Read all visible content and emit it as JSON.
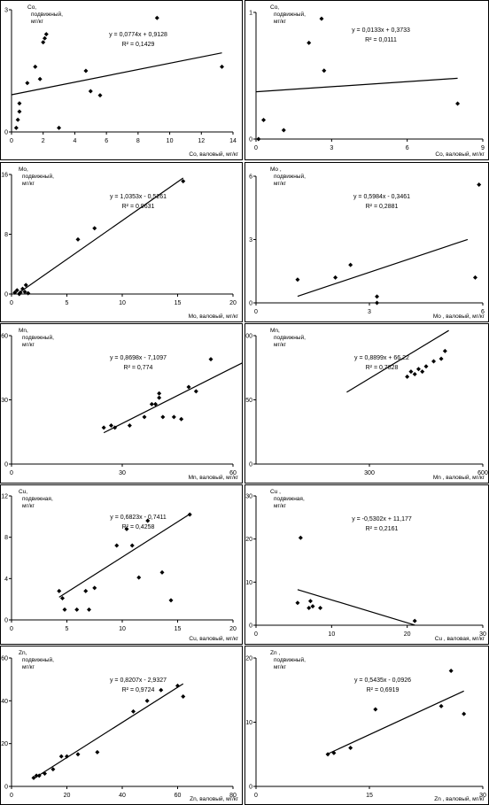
{
  "chart_data": [
    {
      "type": "scatter",
      "ylabel": "Co, подвижный, мг/кг",
      "xlabel": "Co, валовый, мг/кг",
      "equation": "y = 0,0774x + 0,9128",
      "r2": "R² = 0,1429",
      "xlim": [
        0,
        14
      ],
      "ylim": [
        0,
        3
      ],
      "xticks": [
        0,
        2,
        4,
        6,
        8,
        10,
        12,
        14
      ],
      "yticks": [
        0,
        3
      ],
      "xtick_labels": [
        "0",
        "2",
        "4",
        "6",
        "8",
        "10",
        "12",
        "14"
      ],
      "ytick_labels": [
        "0",
        "3"
      ],
      "points": [
        [
          0.3,
          0.1
        ],
        [
          0.4,
          0.3
        ],
        [
          0.5,
          0.5
        ],
        [
          0.5,
          0.7
        ],
        [
          1.0,
          1.2
        ],
        [
          1.5,
          1.6
        ],
        [
          1.8,
          1.3
        ],
        [
          2.0,
          2.2
        ],
        [
          2.1,
          2.3
        ],
        [
          2.2,
          2.4
        ],
        [
          3.0,
          0.1
        ],
        [
          4.7,
          1.5
        ],
        [
          5.0,
          1.0
        ],
        [
          5.6,
          0.9
        ],
        [
          9.2,
          2.8
        ],
        [
          13.3,
          1.6
        ]
      ],
      "fit": {
        "slope": 0.0774,
        "intercept": 0.9128,
        "x": [
          0,
          13.3
        ]
      }
    },
    {
      "type": "scatter",
      "ylabel": "Co, подвижный, мг/кг",
      "xlabel": "Co, валовый, мг/кг",
      "equation": "y = 0,0133x + 0,3733",
      "r2": "R² = 0,0111",
      "xlim": [
        0,
        9
      ],
      "ylim": [
        0,
        1
      ],
      "xticks": [
        0,
        3,
        6,
        9
      ],
      "yticks": [
        0,
        1
      ],
      "xtick_labels": [
        "0",
        "3",
        "6",
        "9"
      ],
      "ytick_labels": [
        "0",
        "1"
      ],
      "points": [
        [
          0.1,
          0.0
        ],
        [
          0.3,
          0.15
        ],
        [
          1.1,
          0.07
        ],
        [
          2.1,
          0.76
        ],
        [
          2.6,
          0.95
        ],
        [
          2.7,
          0.54
        ],
        [
          8.0,
          0.28
        ]
      ],
      "fit": {
        "slope": 0.0133,
        "intercept": 0.3733,
        "x": [
          0,
          8.0
        ]
      }
    },
    {
      "type": "scatter",
      "ylabel": "Mo, подвижный, мг/кг",
      "xlabel": "Mo, валовый, мг/кг",
      "equation": "y = 1,0353x - 0,5261",
      "r2": "R² = 0,9631",
      "xlim": [
        0,
        20
      ],
      "ylim": [
        0,
        16
      ],
      "xticks": [
        0,
        5,
        10,
        15,
        20
      ],
      "yticks": [
        0,
        8,
        16
      ],
      "xtick_labels": [
        "0",
        "5",
        "10",
        "15",
        "20"
      ],
      "ytick_labels": [
        "0",
        "8",
        "16"
      ],
      "points": [
        [
          0.3,
          0.2
        ],
        [
          0.5,
          0.5
        ],
        [
          0.7,
          0.0
        ],
        [
          0.8,
          0.2
        ],
        [
          1.0,
          0.7
        ],
        [
          1.2,
          0.3
        ],
        [
          1.3,
          1.2
        ],
        [
          1.5,
          0.1
        ],
        [
          6.0,
          7.3
        ],
        [
          7.5,
          8.8
        ],
        [
          15.5,
          15.1
        ]
      ],
      "fit": {
        "slope": 1.0353,
        "intercept": -0.5261,
        "x": [
          0.6,
          15.5
        ]
      }
    },
    {
      "type": "scatter",
      "ylabel": "Mo , подвижный, мг/кг",
      "xlabel": "Mo , валовый, мг/кг",
      "equation": "y = 0,5984x - 0,3461",
      "r2": "R² = 0,2881",
      "xlim": [
        0,
        6
      ],
      "ylim": [
        0,
        6
      ],
      "xticks": [
        0,
        3,
        6
      ],
      "yticks": [
        0,
        3,
        6
      ],
      "xtick_labels": [
        "0",
        "3",
        "6"
      ],
      "ytick_labels": [
        "0",
        "3",
        "6"
      ],
      "points": [
        [
          1.1,
          1.1
        ],
        [
          2.1,
          1.2
        ],
        [
          2.5,
          1.8
        ],
        [
          3.2,
          0.3
        ],
        [
          3.2,
          0.0
        ],
        [
          5.8,
          1.2
        ],
        [
          5.9,
          5.6
        ]
      ],
      "fit": {
        "slope": 0.5984,
        "intercept": -0.3461,
        "x": [
          1.1,
          5.6
        ]
      }
    },
    {
      "type": "scatter",
      "ylabel": "Mn, подвижный, мг/кг",
      "xlabel": "Mn, валовый, мг/кг",
      "equation": "y = 0,8698x - 7,1097",
      "r2": "R² = 0,774",
      "xlim": [
        0,
        60
      ],
      "ylim": [
        0,
        60
      ],
      "xticks": [
        0,
        30,
        60
      ],
      "yticks": [
        0,
        30,
        60
      ],
      "xtick_labels": [
        "0",
        "30",
        "60"
      ],
      "ytick_labels": [
        "0",
        "30",
        "60"
      ],
      "points": [
        [
          25,
          17
        ],
        [
          27,
          18
        ],
        [
          28,
          17
        ],
        [
          32,
          18
        ],
        [
          36,
          22
        ],
        [
          38,
          28
        ],
        [
          39,
          28
        ],
        [
          40,
          31
        ],
        [
          40,
          33
        ],
        [
          41,
          22
        ],
        [
          44,
          22
        ],
        [
          46,
          21
        ],
        [
          48,
          36
        ],
        [
          50,
          34
        ],
        [
          54,
          49
        ],
        [
          63,
          50
        ]
      ],
      "fit": {
        "slope": 0.8698,
        "intercept": -7.1097,
        "x": [
          25,
          63
        ]
      }
    },
    {
      "type": "scatter",
      "ylabel": "Mn, подвижный, мг/кг",
      "xlabel": "Mn , валовый, мг/кг",
      "equation": "y = 0,8899x + 66,22",
      "r2": "R² = 0,7828",
      "xlim": [
        0,
        600
      ],
      "ylim": [
        0,
        500
      ],
      "xticks": [
        300,
        600
      ],
      "yticks": [
        0,
        250,
        500
      ],
      "xtick_labels": [
        "300",
        "600"
      ],
      "ytick_labels": [
        "0",
        "250",
        "500"
      ],
      "points": [
        [
          400,
          340
        ],
        [
          410,
          360
        ],
        [
          420,
          350
        ],
        [
          430,
          370
        ],
        [
          440,
          360
        ],
        [
          450,
          380
        ],
        [
          470,
          400
        ],
        [
          490,
          410
        ],
        [
          500,
          440
        ]
      ],
      "fit": {
        "slope": 0.8899,
        "intercept": 66.22,
        "x": [
          240,
          510
        ]
      }
    },
    {
      "type": "scatter",
      "ylabel": "Cu, подвижная, мг/кг",
      "xlabel": "Cu, валовый, мг/кг",
      "equation": "y = 0,6823x - 0,7411",
      "r2": "R² = 0,4258",
      "xlim": [
        0,
        20
      ],
      "ylim": [
        0,
        12
      ],
      "xticks": [
        0,
        5,
        10,
        15,
        20
      ],
      "yticks": [
        0,
        4,
        8,
        12
      ],
      "xtick_labels": [
        "0",
        "5",
        "10",
        "15",
        "20"
      ],
      "ytick_labels": [
        "0",
        "4",
        "8",
        "12"
      ],
      "points": [
        [
          4.3,
          2.8
        ],
        [
          4.6,
          2.1
        ],
        [
          4.8,
          1.0
        ],
        [
          5.9,
          1.0
        ],
        [
          6.7,
          2.8
        ],
        [
          7.0,
          1.0
        ],
        [
          7.5,
          3.1
        ],
        [
          9.5,
          7.2
        ],
        [
          10.4,
          8.8
        ],
        [
          10.9,
          7.2
        ],
        [
          11.5,
          4.1
        ],
        [
          12.3,
          9.6
        ],
        [
          13.6,
          4.6
        ],
        [
          14.4,
          1.9
        ],
        [
          16.1,
          10.2
        ]
      ],
      "fit": {
        "slope": 0.6823,
        "intercept": -0.7411,
        "x": [
          4.3,
          16.1
        ]
      }
    },
    {
      "type": "scatter",
      "ylabel": "Cu , подвижная, мг/кг",
      "xlabel": "Cu , валовая, мг/кг",
      "equation": "y = -0,5302x + 11,177",
      "r2": "R² = 0,2161",
      "xlim": [
        0,
        30
      ],
      "ylim": [
        0,
        30
      ],
      "xticks": [
        0,
        10,
        20,
        30
      ],
      "yticks": [
        0,
        10,
        20,
        30
      ],
      "xtick_labels": [
        "0",
        "10",
        "20",
        "30"
      ],
      "ytick_labels": [
        "0",
        "10",
        "20",
        "30"
      ],
      "points": [
        [
          5.5,
          5.2
        ],
        [
          5.9,
          20.3
        ],
        [
          7.0,
          4.0
        ],
        [
          7.2,
          5.6
        ],
        [
          7.5,
          4.4
        ],
        [
          8.5,
          4.0
        ],
        [
          21.0,
          1.0
        ]
      ],
      "fit": {
        "slope": -0.5302,
        "intercept": 11.177,
        "x": [
          5.5,
          21.0
        ]
      }
    },
    {
      "type": "scatter",
      "ylabel": "Zn, подвижный, мг/кг",
      "xlabel": "Zn, валовый, мг/кг",
      "equation": "y = 0,8207x - 2,9327",
      "r2": "R² = 0,9724",
      "xlim": [
        0,
        80
      ],
      "ylim": [
        0,
        60
      ],
      "xticks": [
        0,
        20,
        40,
        60,
        80
      ],
      "yticks": [
        0,
        20,
        40,
        60
      ],
      "xtick_labels": [
        "0",
        "20",
        "40",
        "60",
        "80"
      ],
      "ytick_labels": [
        "0",
        "20",
        "40",
        "60"
      ],
      "points": [
        [
          8,
          4
        ],
        [
          9,
          5
        ],
        [
          10,
          5
        ],
        [
          12,
          6
        ],
        [
          15,
          8
        ],
        [
          18,
          14
        ],
        [
          20,
          14
        ],
        [
          24,
          15
        ],
        [
          31,
          16
        ],
        [
          44,
          35
        ],
        [
          49,
          40
        ],
        [
          54,
          45
        ],
        [
          60,
          47
        ],
        [
          62,
          42
        ]
      ],
      "fit": {
        "slope": 0.8207,
        "intercept": -2.9327,
        "x": [
          8,
          62
        ]
      }
    },
    {
      "type": "scatter",
      "ylabel": "Zn , подвижный, мг/кг",
      "xlabel": "Zn , валовый, мг/кг",
      "equation": "y = 0,5435x - 0,0926",
      "r2": "R² = 0,6919",
      "xlim": [
        0,
        30
      ],
      "ylim": [
        0,
        20
      ],
      "xticks": [
        0,
        15,
        30
      ],
      "yticks": [
        0,
        10,
        20
      ],
      "xtick_labels": [
        "0",
        "15",
        "30"
      ],
      "ytick_labels": [
        "0",
        "10",
        "20"
      ],
      "points": [
        [
          9.5,
          5.0
        ],
        [
          10.3,
          5.2
        ],
        [
          12.5,
          6.0
        ],
        [
          15.8,
          12.0
        ],
        [
          24.5,
          12.5
        ],
        [
          25.8,
          18.0
        ],
        [
          27.5,
          11.3
        ]
      ],
      "fit": {
        "slope": 0.5435,
        "intercept": -0.0926,
        "x": [
          9.5,
          27.5
        ]
      }
    }
  ]
}
